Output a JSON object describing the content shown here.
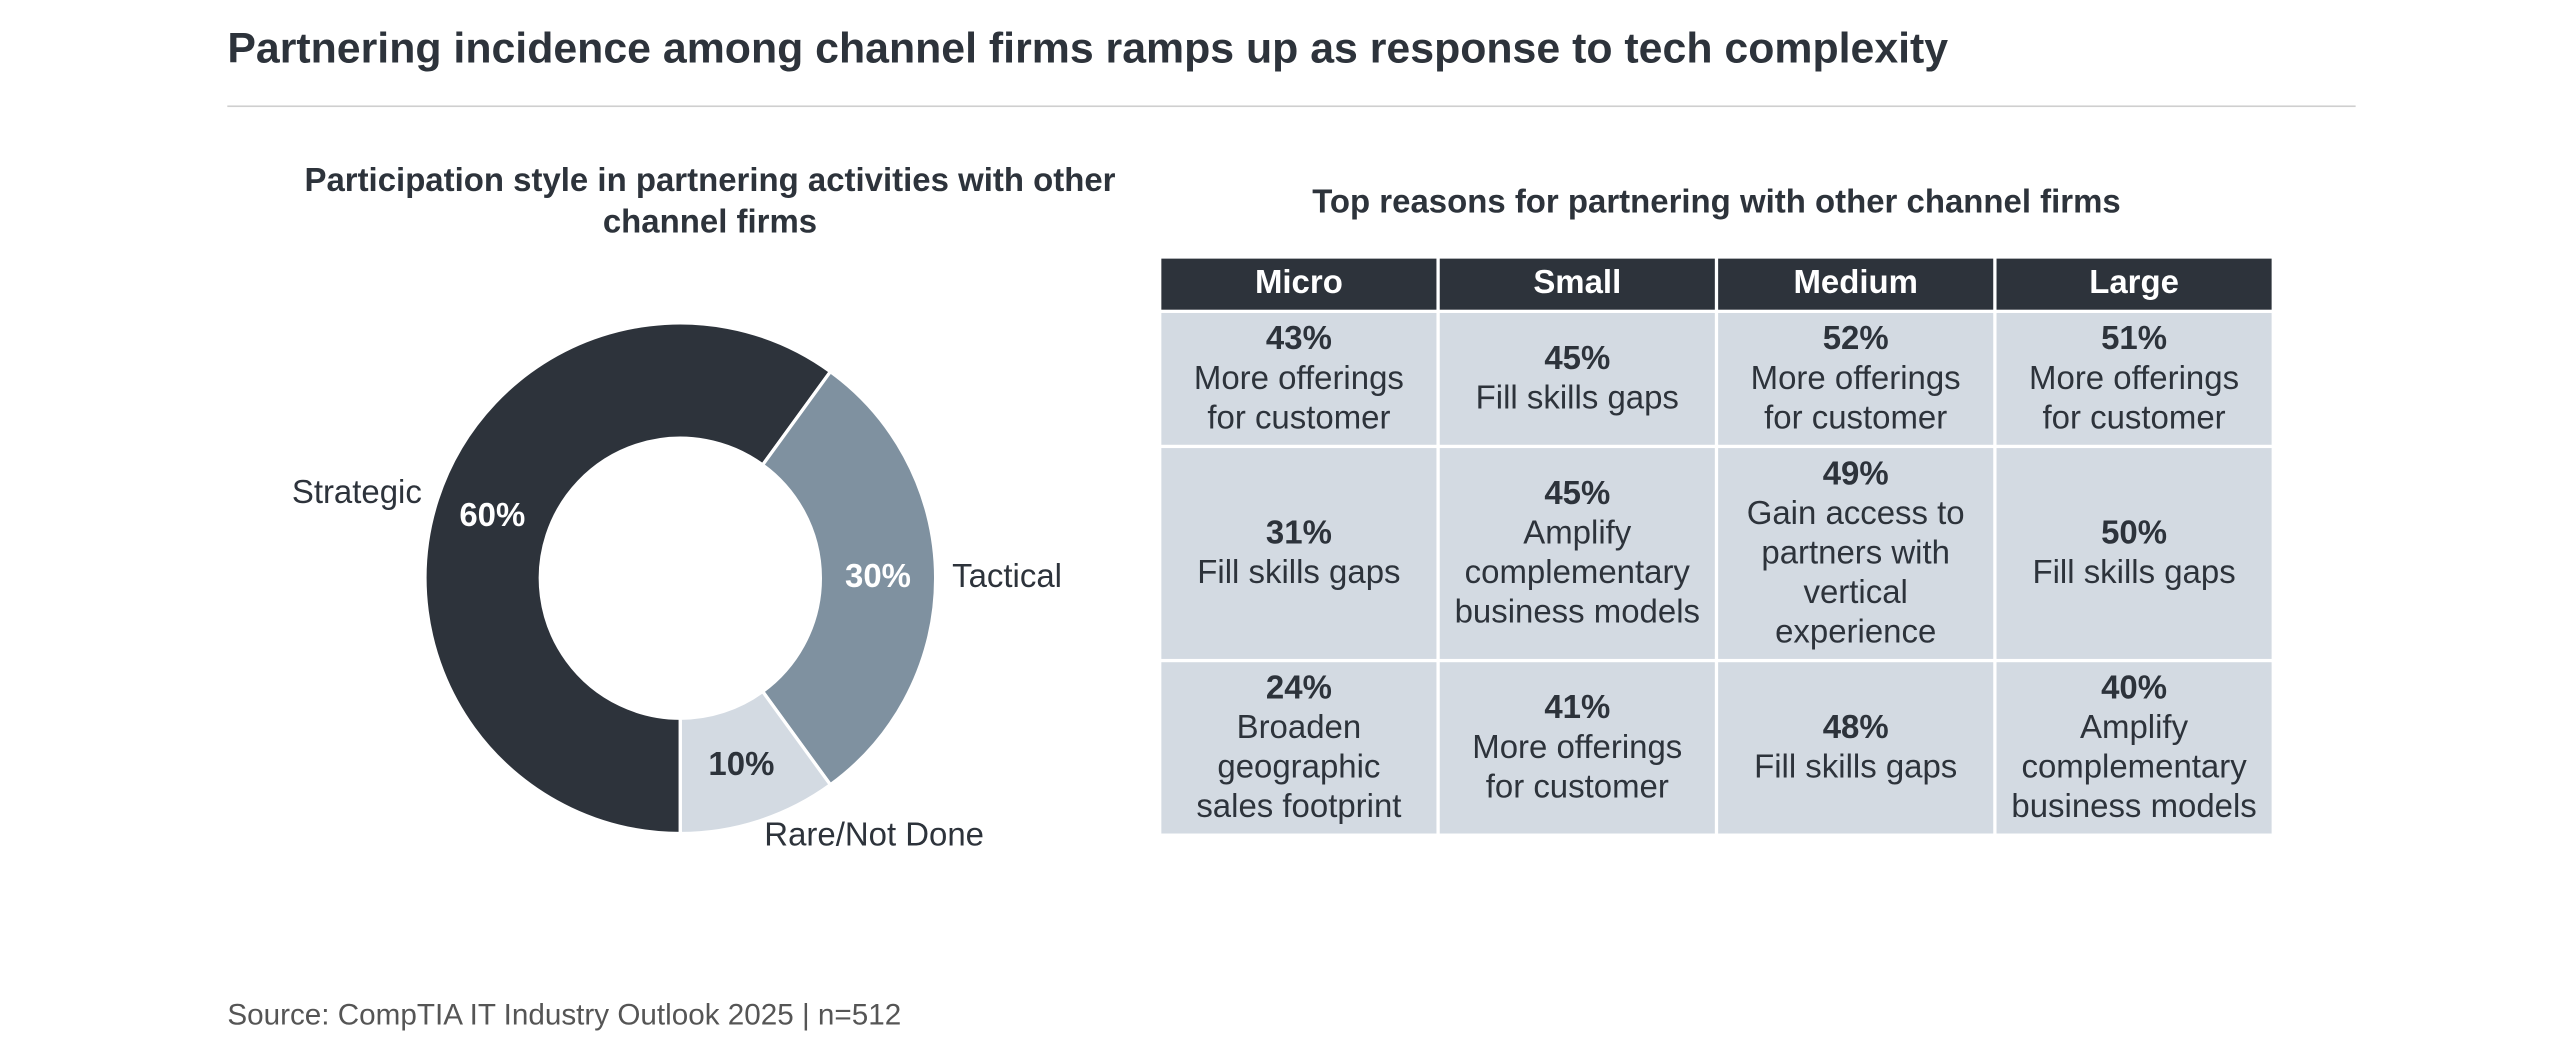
{
  "title": "Partnering incidence among channel firms ramps up as response to tech complexity",
  "chart_data": {
    "type": "pie",
    "title": "Participation style in partnering activities with other channel firms",
    "categories": [
      "Strategic",
      "Tactical",
      "Rare/Not Done"
    ],
    "values": [
      60,
      30,
      10
    ],
    "value_labels": [
      "60%",
      "30%",
      "10%"
    ],
    "colors": [
      "#2d333b",
      "#7f91a0",
      "#d3dae2"
    ],
    "donut": true
  },
  "table": {
    "title": "Top reasons for partnering with other channel firms",
    "columns": [
      "Micro",
      "Small",
      "Medium",
      "Large"
    ],
    "rows": [
      [
        {
          "pct": "43%",
          "reason": "More offerings for customer"
        },
        {
          "pct": "45%",
          "reason": "Fill skills gaps"
        },
        {
          "pct": "52%",
          "reason": "More offerings for customer"
        },
        {
          "pct": "51%",
          "reason": "More offerings for customer"
        }
      ],
      [
        {
          "pct": "31%",
          "reason": "Fill skills gaps"
        },
        {
          "pct": "45%",
          "reason": "Amplify complementary business models"
        },
        {
          "pct": "49%",
          "reason": "Gain access to partners with vertical experience"
        },
        {
          "pct": "50%",
          "reason": "Fill skills gaps"
        }
      ],
      [
        {
          "pct": "24%",
          "reason": "Broaden geographic sales footprint"
        },
        {
          "pct": "41%",
          "reason": "More offerings for customer"
        },
        {
          "pct": "48%",
          "reason": "Fill skills gaps"
        },
        {
          "pct": "40%",
          "reason": "Amplify complementary business models"
        }
      ]
    ]
  },
  "source": "Source: CompTIA IT Industry Outlook 2025 | n=512"
}
